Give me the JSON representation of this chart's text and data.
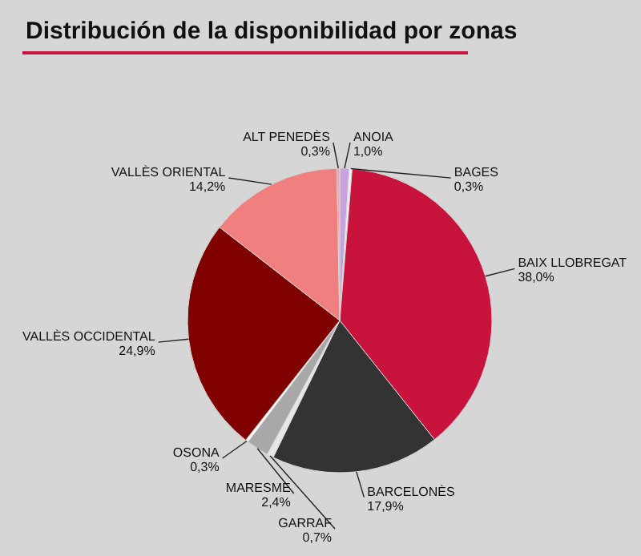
{
  "chart_data": {
    "type": "pie",
    "title": "Distribución de la disponibilidad por zonas",
    "categories": [
      "ANOIA",
      "BAGES",
      "BAIX LLOBREGAT",
      "BARCELONÈS",
      "GARRAF",
      "MARESME",
      "OSONA",
      "VALLÈS OCCIDENTAL",
      "VALLÈS ORIENTAL",
      "ALT PENEDÈS"
    ],
    "values": [
      1.0,
      0.3,
      38.0,
      17.9,
      0.7,
      2.4,
      0.3,
      24.9,
      14.2,
      0.3
    ],
    "value_labels": [
      "1,0%",
      "0,3%",
      "38,0%",
      "17,9%",
      "0,7%",
      "2,4%",
      "0,3%",
      "24,9%",
      "14,2%",
      "0,3%"
    ],
    "colors": [
      "#c8a2e0",
      "#f2f2f2",
      "#c8143c",
      "#333333",
      "#e6e6e6",
      "#a8a8a8",
      "#ffffff",
      "#800000",
      "#f08080",
      "#ff9fa8"
    ]
  }
}
